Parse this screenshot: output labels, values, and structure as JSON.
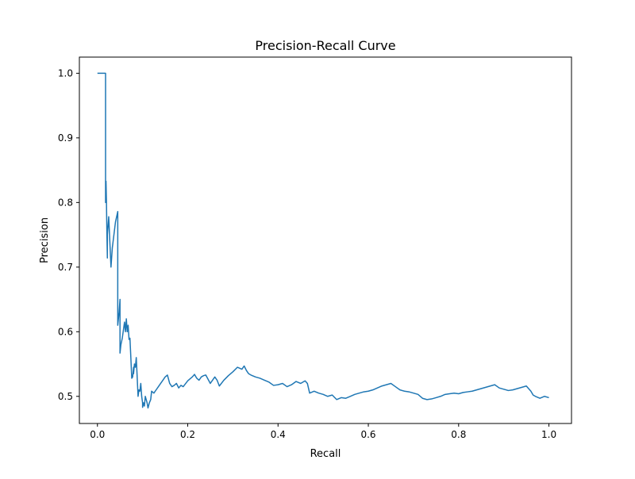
{
  "chart_data": {
    "type": "line",
    "title": "Precision-Recall Curve",
    "xlabel": "Recall",
    "ylabel": "Precision",
    "xlim": [
      -0.04,
      1.05
    ],
    "ylim": [
      0.458,
      1.025
    ],
    "x_ticks": [
      0.0,
      0.2,
      0.4,
      0.6,
      0.8,
      1.0
    ],
    "x_tick_labels": [
      "0.0",
      "0.2",
      "0.4",
      "0.6",
      "0.8",
      "1.0"
    ],
    "y_ticks": [
      0.5,
      0.6,
      0.7,
      0.8,
      0.9,
      1.0
    ],
    "y_tick_labels": [
      "0.5",
      "0.6",
      "0.7",
      "0.8",
      "0.9",
      "1.0"
    ],
    "grid": false,
    "legend": "none",
    "line_color": "#1f77b4",
    "series": [
      {
        "x": [
          0.0,
          0.005,
          0.01,
          0.018,
          0.018,
          0.019,
          0.02,
          0.021,
          0.022,
          0.022,
          0.025,
          0.03,
          0.03,
          0.033,
          0.04,
          0.045,
          0.045,
          0.048,
          0.05,
          0.05,
          0.052,
          0.055,
          0.06,
          0.062,
          0.064,
          0.066,
          0.068,
          0.07,
          0.072,
          0.074,
          0.076,
          0.078,
          0.08,
          0.08,
          0.082,
          0.084,
          0.086,
          0.088,
          0.09,
          0.092,
          0.094,
          0.096,
          0.098,
          0.1,
          0.1,
          0.102,
          0.104,
          0.106,
          0.108,
          0.11,
          0.112,
          0.115,
          0.118,
          0.12,
          0.125,
          0.13,
          0.135,
          0.14,
          0.145,
          0.15,
          0.155,
          0.16,
          0.165,
          0.17,
          0.175,
          0.18,
          0.185,
          0.19,
          0.2,
          0.21,
          0.215,
          0.22,
          0.225,
          0.23,
          0.235,
          0.24,
          0.25,
          0.26,
          0.265,
          0.27,
          0.28,
          0.29,
          0.3,
          0.31,
          0.32,
          0.325,
          0.33,
          0.335,
          0.34,
          0.35,
          0.36,
          0.37,
          0.38,
          0.39,
          0.4,
          0.41,
          0.42,
          0.43,
          0.44,
          0.45,
          0.46,
          0.465,
          0.47,
          0.48,
          0.49,
          0.5,
          0.51,
          0.52,
          0.53,
          0.54,
          0.55,
          0.56,
          0.57,
          0.58,
          0.59,
          0.6,
          0.61,
          0.62,
          0.63,
          0.64,
          0.65,
          0.66,
          0.67,
          0.68,
          0.69,
          0.7,
          0.71,
          0.72,
          0.73,
          0.74,
          0.75,
          0.76,
          0.77,
          0.78,
          0.79,
          0.8,
          0.81,
          0.82,
          0.83,
          0.84,
          0.85,
          0.86,
          0.87,
          0.88,
          0.89,
          0.9,
          0.91,
          0.92,
          0.93,
          0.94,
          0.95,
          0.96,
          0.965,
          0.97,
          0.98,
          0.99,
          1.0
        ],
        "y": [
          1.0,
          1.0,
          1.0,
          1.0,
          0.8,
          0.833,
          0.8,
          0.75,
          0.714,
          0.75,
          0.778,
          0.7,
          0.7,
          0.73,
          0.77,
          0.786,
          0.61,
          0.63,
          0.65,
          0.567,
          0.58,
          0.59,
          0.615,
          0.6,
          0.62,
          0.6,
          0.61,
          0.588,
          0.59,
          0.56,
          0.528,
          0.53,
          0.545,
          0.535,
          0.55,
          0.545,
          0.56,
          0.53,
          0.5,
          0.51,
          0.508,
          0.52,
          0.5,
          0.49,
          0.483,
          0.49,
          0.485,
          0.5,
          0.495,
          0.49,
          0.482,
          0.49,
          0.495,
          0.508,
          0.505,
          0.51,
          0.515,
          0.52,
          0.525,
          0.53,
          0.533,
          0.52,
          0.515,
          0.517,
          0.52,
          0.513,
          0.517,
          0.515,
          0.524,
          0.53,
          0.534,
          0.528,
          0.525,
          0.53,
          0.532,
          0.533,
          0.52,
          0.53,
          0.525,
          0.516,
          0.525,
          0.532,
          0.538,
          0.545,
          0.542,
          0.547,
          0.54,
          0.535,
          0.533,
          0.53,
          0.528,
          0.525,
          0.522,
          0.517,
          0.518,
          0.52,
          0.515,
          0.518,
          0.523,
          0.52,
          0.524,
          0.52,
          0.505,
          0.508,
          0.505,
          0.503,
          0.5,
          0.502,
          0.495,
          0.498,
          0.497,
          0.5,
          0.503,
          0.505,
          0.507,
          0.508,
          0.51,
          0.513,
          0.516,
          0.518,
          0.52,
          0.515,
          0.51,
          0.508,
          0.507,
          0.505,
          0.503,
          0.497,
          0.495,
          0.496,
          0.498,
          0.5,
          0.503,
          0.504,
          0.505,
          0.504,
          0.506,
          0.507,
          0.508,
          0.51,
          0.512,
          0.514,
          0.516,
          0.518,
          0.513,
          0.511,
          0.509,
          0.51,
          0.512,
          0.514,
          0.516,
          0.508,
          0.502,
          0.5,
          0.497,
          0.5,
          0.498
        ]
      }
    ]
  }
}
